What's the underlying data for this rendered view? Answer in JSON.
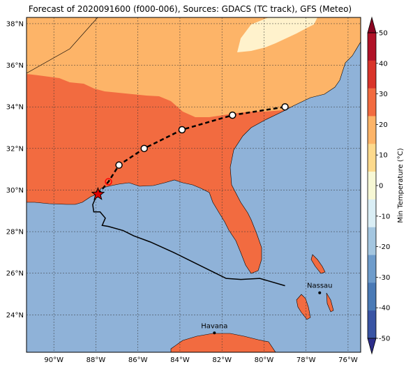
{
  "title": "Forecast of 2020091600 (f000-006), Sources: GDACS (TC track), GFS (Meteo)",
  "map": {
    "lon_range": [
      -91.3,
      -75.4
    ],
    "lat_range": [
      22.2,
      38.3
    ],
    "lat_ticks": [
      {
        "value": 24,
        "label": "24°N"
      },
      {
        "value": 26,
        "label": "26°N"
      },
      {
        "value": 28,
        "label": "28°N"
      },
      {
        "value": 30,
        "label": "30°N"
      },
      {
        "value": 32,
        "label": "32°N"
      },
      {
        "value": 34,
        "label": "34°N"
      },
      {
        "value": 36,
        "label": "36°N"
      },
      {
        "value": 38,
        "label": "38°N"
      }
    ],
    "lon_ticks": [
      {
        "value": -90,
        "label": "90°W"
      },
      {
        "value": -88,
        "label": "88°W"
      },
      {
        "value": -86,
        "label": "86°W"
      },
      {
        "value": -84,
        "label": "84°W"
      },
      {
        "value": -82,
        "label": "82°W"
      },
      {
        "value": -80,
        "label": "80°W"
      },
      {
        "value": -78,
        "label": "78°W"
      },
      {
        "value": -76,
        "label": "76°W"
      }
    ],
    "colors": {
      "ocean": "#8fb2d8",
      "band_20_30": "#f26b40",
      "band_10_20": "#fdb468",
      "band_0_10": "#fff2cc",
      "frame": "#000000"
    },
    "cities": [
      {
        "name": "Havana",
        "lon": -82.36,
        "lat": 23.13
      },
      {
        "name": "Nassau",
        "lon": -77.35,
        "lat": 25.06
      }
    ],
    "past_track": [
      [
        -79.0,
        25.4
      ],
      [
        -80.2,
        25.75
      ],
      [
        -81.1,
        25.7
      ],
      [
        -81.8,
        25.75
      ],
      [
        -82.3,
        26.0
      ],
      [
        -83.3,
        26.5
      ],
      [
        -84.3,
        27.0
      ],
      [
        -85.4,
        27.5
      ],
      [
        -86.2,
        27.8
      ],
      [
        -86.7,
        28.05
      ],
      [
        -87.4,
        28.25
      ],
      [
        -87.7,
        28.3
      ],
      [
        -87.55,
        28.65
      ],
      [
        -87.8,
        28.95
      ],
      [
        -88.1,
        28.95
      ],
      [
        -88.15,
        29.3
      ],
      [
        -88.0,
        29.65
      ],
      [
        -87.9,
        29.8
      ]
    ],
    "current_position": {
      "lon": -87.9,
      "lat": 29.8
    },
    "forecast_track": [
      {
        "lon": -87.4,
        "lat": 30.4
      },
      {
        "lon": -86.9,
        "lat": 31.2
      },
      {
        "lon": -85.7,
        "lat": 32.0
      },
      {
        "lon": -83.9,
        "lat": 32.9
      },
      {
        "lon": -81.5,
        "lat": 33.6
      },
      {
        "lon": -79.0,
        "lat": 34.0
      }
    ]
  },
  "colorbar": {
    "label": "Min Temperature (°C)",
    "min": -50,
    "max": 50,
    "ticks": [
      -50,
      -40,
      -30,
      -20,
      -10,
      0,
      10,
      20,
      30,
      40,
      50
    ],
    "colors": [
      "#2c2d8a",
      "#3954a4",
      "#4a7ab6",
      "#6e9ccb",
      "#a4c6e0",
      "#daeef5",
      "#f7f8d5",
      "#fdda8d",
      "#fdb468",
      "#f26b40",
      "#d9342a",
      "#b11228",
      "#8a0522"
    ]
  }
}
